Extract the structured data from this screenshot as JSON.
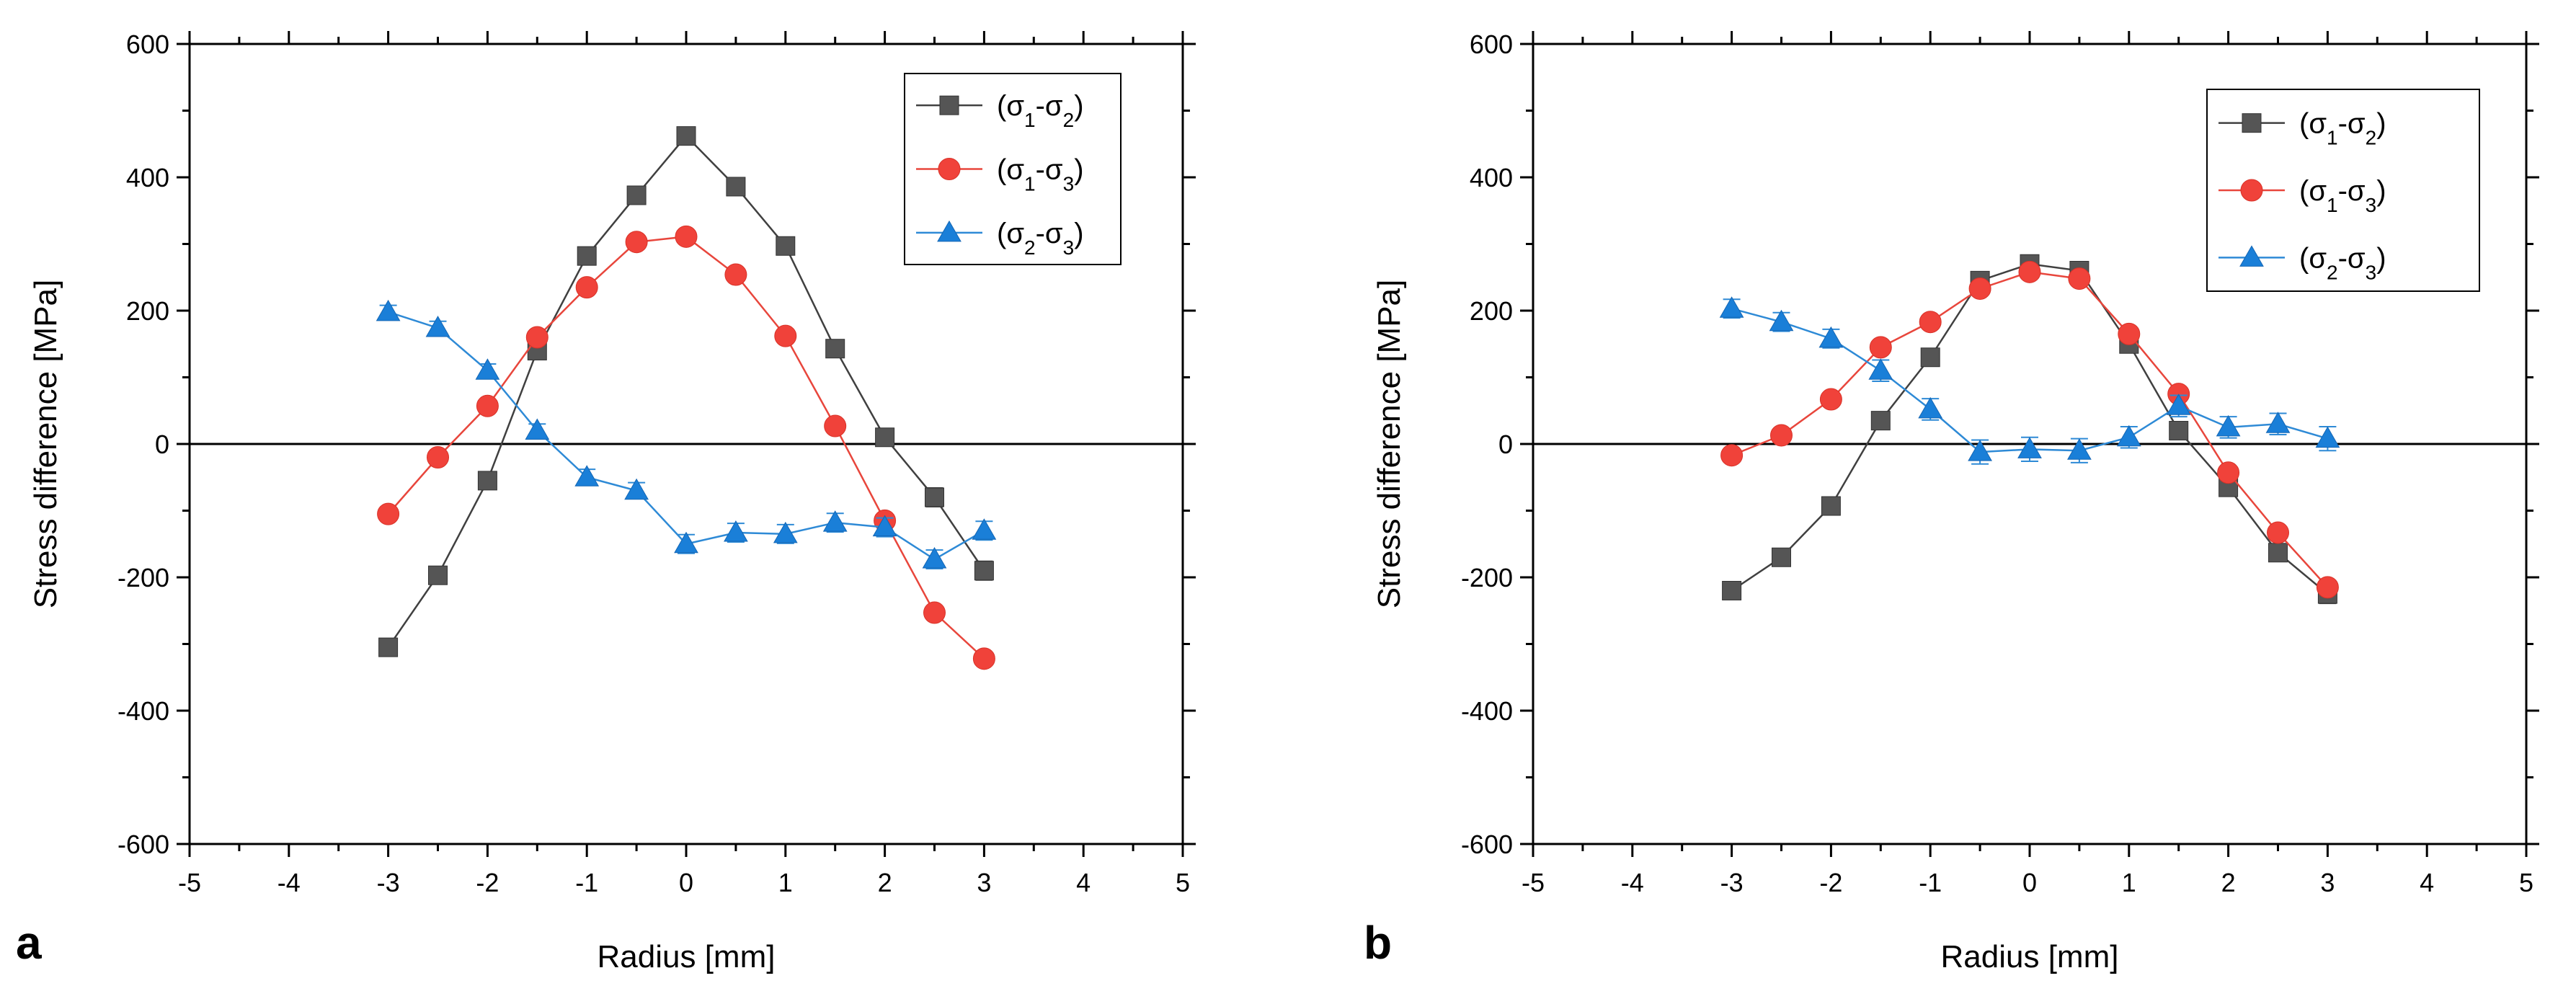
{
  "figure": {
    "panel_a_label": "a",
    "panel_b_label": "b"
  },
  "chart_data": [
    {
      "type": "line",
      "panel": "a",
      "xlabel": "Radius [mm]",
      "ylabel": "Stress difference [MPa]",
      "xlim": [
        -5,
        5
      ],
      "ylim": [
        -600,
        600
      ],
      "xticks": [
        -5,
        -4,
        -3,
        -2,
        -1,
        0,
        1,
        2,
        3,
        4,
        5
      ],
      "yticks": [
        -600,
        -400,
        -200,
        0,
        200,
        400,
        600
      ],
      "xtick_labels": [
        "-5",
        "-4",
        "-3",
        "-2",
        "-1",
        "0",
        "1",
        "2",
        "3",
        "4",
        "5"
      ],
      "ytick_labels": [
        "-600",
        "-400",
        "-200",
        "0",
        "200",
        "400",
        "600"
      ],
      "zero_line": true,
      "grid": false,
      "legend_position": "top-right",
      "x": [
        -3,
        -2.5,
        -2,
        -1.5,
        -1,
        -0.5,
        0,
        0.5,
        1,
        1.5,
        2,
        2.5,
        3
      ],
      "series": [
        {
          "name_main": "(σ",
          "name_sub1": "1",
          "name_mid": "-σ",
          "name_sub2": "2",
          "name_end": ")",
          "marker": "square",
          "color": "#404040",
          "marker_color": "#555555",
          "values": [
            -305,
            -197,
            -55,
            140,
            282,
            373,
            462,
            386,
            297,
            143,
            10,
            -80,
            -190
          ],
          "errors": [
            8,
            8,
            8,
            10,
            10,
            12,
            12,
            12,
            10,
            10,
            12,
            14,
            14
          ]
        },
        {
          "name_main": "(σ",
          "name_sub1": "1",
          "name_mid": "-σ",
          "name_sub2": "3",
          "name_end": ")",
          "marker": "circle",
          "color": "#e8463c",
          "marker_color": "#f0423a",
          "values": [
            -105,
            -20,
            57,
            160,
            235,
            303,
            311,
            254,
            162,
            27,
            -115,
            -253,
            -322
          ],
          "errors": [
            5,
            5,
            5,
            6,
            6,
            6,
            8,
            6,
            6,
            6,
            8,
            8,
            8
          ]
        },
        {
          "name_main": "(σ",
          "name_sub1": "2",
          "name_mid": "-σ",
          "name_sub2": "3",
          "name_end": ")",
          "marker": "triangle",
          "color": "#2e8ad6",
          "marker_color": "#1a7fd8",
          "values": [
            198,
            174,
            110,
            20,
            -50,
            -70,
            -150,
            -133,
            -135,
            -118,
            -125,
            -173,
            -130
          ],
          "errors": [
            10,
            10,
            10,
            10,
            12,
            12,
            14,
            14,
            14,
            14,
            14,
            14,
            14
          ]
        }
      ]
    },
    {
      "type": "line",
      "panel": "b",
      "xlabel": "Radius [mm]",
      "ylabel": "Stress difference [MPa]",
      "xlim": [
        -5,
        5
      ],
      "ylim": [
        -600,
        600
      ],
      "xticks": [
        -5,
        -4,
        -3,
        -2,
        -1,
        0,
        1,
        2,
        3,
        4,
        5
      ],
      "yticks": [
        -600,
        -400,
        -200,
        0,
        200,
        400,
        600
      ],
      "xtick_labels": [
        "-5",
        "-4",
        "-3",
        "-2",
        "-1",
        "0",
        "1",
        "2",
        "3",
        "4",
        "5"
      ],
      "ytick_labels": [
        "-600",
        "-400",
        "-200",
        "0",
        "200",
        "400",
        "600"
      ],
      "zero_line": true,
      "grid": false,
      "legend_position": "top-right",
      "x": [
        -3,
        -2.5,
        -2,
        -1.5,
        -1,
        -0.5,
        0,
        0.5,
        1,
        1.5,
        2,
        2.5,
        3
      ],
      "series": [
        {
          "name_main": "(σ",
          "name_sub1": "1",
          "name_mid": "-σ",
          "name_sub2": "2",
          "name_end": ")",
          "marker": "square",
          "color": "#404040",
          "marker_color": "#555555",
          "values": [
            -220,
            -170,
            -93,
            35,
            130,
            245,
            270,
            260,
            150,
            20,
            -65,
            -163,
            -225
          ],
          "errors": [
            6,
            6,
            6,
            6,
            8,
            10,
            12,
            12,
            10,
            8,
            10,
            12,
            14
          ]
        },
        {
          "name_main": "(σ",
          "name_sub1": "1",
          "name_mid": "-σ",
          "name_sub2": "3",
          "name_end": ")",
          "marker": "circle",
          "color": "#e8463c",
          "marker_color": "#f0423a",
          "values": [
            -17,
            13,
            67,
            145,
            183,
            233,
            258,
            248,
            165,
            75,
            -43,
            -133,
            -215
          ],
          "errors": [
            6,
            6,
            6,
            6,
            6,
            8,
            8,
            8,
            8,
            8,
            8,
            8,
            10
          ]
        },
        {
          "name_main": "(σ",
          "name_sub1": "2",
          "name_mid": "-σ",
          "name_sub2": "3",
          "name_end": ")",
          "marker": "triangle",
          "color": "#2e8ad6",
          "marker_color": "#1a7fd8",
          "values": [
            203,
            183,
            158,
            110,
            52,
            -12,
            -8,
            -10,
            10,
            57,
            25,
            30,
            8
          ],
          "errors": [
            14,
            14,
            14,
            16,
            16,
            18,
            18,
            18,
            16,
            16,
            16,
            16,
            18
          ]
        }
      ]
    }
  ]
}
